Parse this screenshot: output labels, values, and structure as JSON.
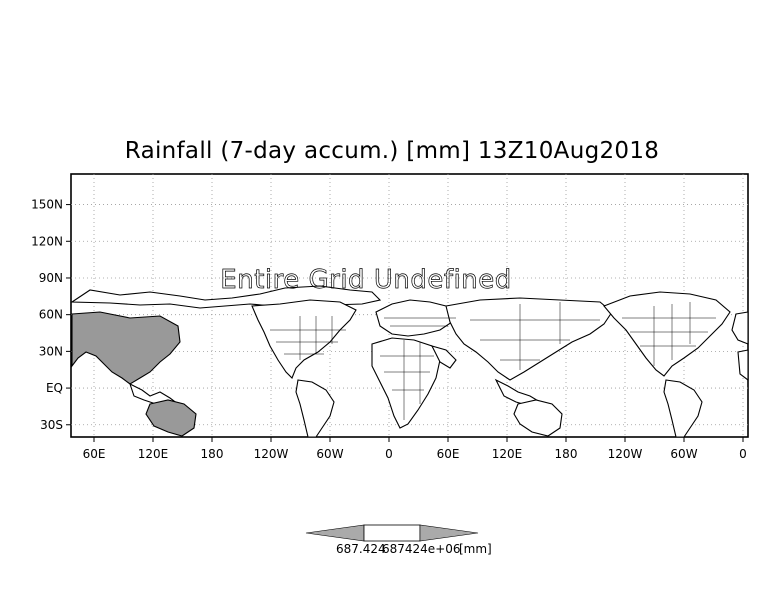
{
  "title": "Rainfall (7-day accum.) [mm] 13Z10Aug2018",
  "overlay_text": "Entire Grid Undefined",
  "map": {
    "projection": "latlon",
    "lon_range": [
      30,
      360
    ],
    "lat_range": [
      -40,
      175
    ],
    "grid": true,
    "land_fill": "#ffffff",
    "shaded_region_color": "#999999",
    "coastline_color": "#000000",
    "lat_ticks": [
      {
        "lat": 150,
        "label": "150N"
      },
      {
        "lat": 120,
        "label": "120N"
      },
      {
        "lat": 90,
        "label": "90N"
      },
      {
        "lat": 60,
        "label": "60N"
      },
      {
        "lat": 30,
        "label": "30N"
      },
      {
        "lat": 0,
        "label": "EQ"
      },
      {
        "lat": -30,
        "label": "30S"
      }
    ],
    "lon_ticks": [
      {
        "label": "60E"
      },
      {
        "label": "120E"
      },
      {
        "label": "180"
      },
      {
        "label": "120W"
      },
      {
        "label": "60W"
      },
      {
        "label": "0"
      },
      {
        "label": "60E"
      },
      {
        "label": "120E"
      },
      {
        "label": "180"
      },
      {
        "label": "120W"
      },
      {
        "label": "60W"
      },
      {
        "label": "0"
      }
    ]
  },
  "colorbar": {
    "label_left": "687.424",
    "label_right": "687424e+06",
    "units": "[mm]",
    "fill_left": "#aaaaaa",
    "fill_mid": "#ffffff",
    "fill_right": "#aaaaaa"
  }
}
